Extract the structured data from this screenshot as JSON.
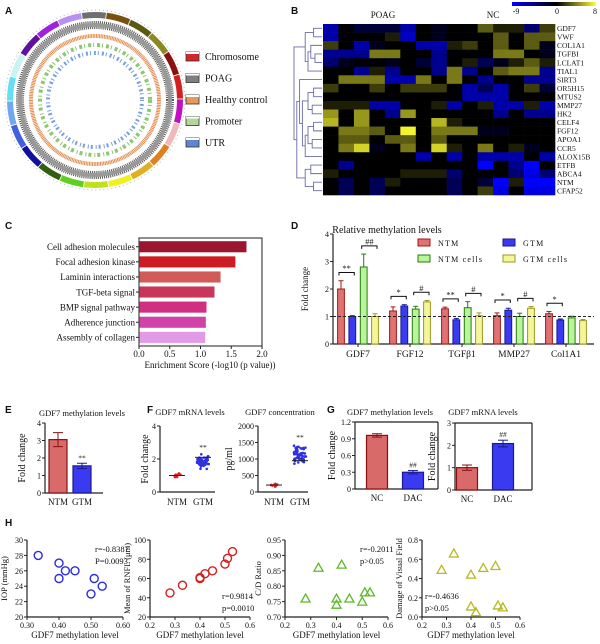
{
  "panels": {
    "A": "A",
    "B": "B",
    "C": "C",
    "D": "D",
    "E": "E",
    "F": "F",
    "G": "G",
    "H": "H"
  },
  "chart_data": [
    {
      "type": "circos",
      "legend": [
        {
          "label": "Chromosome",
          "color": "#d3262b"
        },
        {
          "label": "POAG",
          "color": "#7f7f7f"
        },
        {
          "label": "Healthy control",
          "color": "#e59a5c"
        },
        {
          "label": "Promoter",
          "color": "#b5d59a"
        },
        {
          "label": "UTR",
          "color": "#5f86cf"
        }
      ],
      "chromosome_colors": [
        "#6f6f6f",
        "#7a5010",
        "#5a5a10",
        "#8a8a20",
        "#8b1010",
        "#d02020",
        "#c010c0",
        "#f0b8b8",
        "#e08020",
        "#e0b020",
        "#f0f020",
        "#c0e020",
        "#60d020",
        "#306010",
        "#1010a0",
        "#4060e0",
        "#70a8f0",
        "#60e0f0",
        "#c8f4f4",
        "#6010a0",
        "#a020e0",
        "#b890f0"
      ]
    },
    {
      "type": "heatmap",
      "column_groups": [
        "POAG",
        "NC"
      ],
      "colorbar": {
        "min": -9,
        "max": 8,
        "ticks": [
          "-9",
          "0",
          "8"
        ],
        "low_color": "#0000ff",
        "mid_color": "#000000",
        "high_color": "#ffff30"
      },
      "highlight_color": "#e0201b",
      "rows": [
        "GDF7",
        "VWF",
        "COL1A1",
        "TGFBI",
        "LCLAT1",
        "TIAL1",
        "SIRT3",
        "OR5H15",
        "MTUS2",
        "MMP27",
        "HK2",
        "CELF4",
        "FGF12",
        "APOA1",
        "CCR5",
        "ALOX15B",
        "ETFB",
        "ABCA4",
        "NTM",
        "CFAP52"
      ],
      "values": [
        [
          -6,
          0,
          -2,
          -2,
          -2,
          -6,
          0,
          -1,
          0,
          0,
          3,
          1,
          1,
          -4,
          2
        ],
        [
          -6,
          0,
          0,
          0,
          1,
          -7,
          0,
          -1,
          0,
          0,
          0,
          3,
          0,
          3,
          3
        ],
        [
          2,
          0,
          -6,
          -1,
          0,
          0,
          -6,
          -6,
          1,
          2,
          0,
          3,
          0,
          3,
          -1
        ],
        [
          -5,
          -5,
          -5,
          4,
          4,
          0,
          0,
          -5,
          0,
          0,
          0,
          4,
          4,
          0,
          -1
        ],
        [
          -4,
          -1,
          0,
          0,
          -1,
          0,
          -2,
          -5,
          0,
          1,
          -3,
          -1,
          1,
          3,
          1
        ],
        [
          0,
          0,
          -5,
          1,
          -5,
          0,
          0,
          -5,
          4,
          -5,
          0,
          3,
          4,
          4,
          -5
        ],
        [
          0,
          4,
          4,
          4,
          -6,
          -6,
          4,
          0,
          4,
          0,
          -5,
          0,
          0,
          -5,
          -5
        ],
        [
          2,
          0,
          0,
          2,
          0,
          2,
          2,
          2,
          0,
          -6,
          -3,
          -6,
          0,
          2,
          -2
        ],
        [
          0,
          0,
          0,
          0,
          0,
          0,
          0,
          0,
          0,
          -6,
          -6,
          -6,
          0,
          0,
          0
        ],
        [
          1,
          1,
          1,
          -6,
          -6,
          0,
          0,
          1,
          -6,
          0,
          1,
          -6,
          -6,
          1,
          -6
        ],
        [
          5,
          0,
          5,
          0,
          -5,
          5,
          0,
          0,
          0,
          0,
          0,
          -5,
          0,
          -5,
          -5
        ],
        [
          6,
          0,
          5,
          0,
          0,
          0,
          0,
          6,
          1,
          0,
          0,
          0,
          0,
          0,
          0
        ],
        [
          0,
          4,
          4,
          3,
          0,
          8,
          0,
          4,
          4,
          4,
          -1,
          -1,
          0,
          0,
          0
        ],
        [
          0,
          3,
          3,
          0,
          3,
          3,
          0,
          3,
          0,
          0,
          0,
          0,
          0,
          0,
          0
        ],
        [
          0,
          4,
          7,
          -1,
          0,
          4,
          0,
          7,
          1,
          0,
          4,
          0,
          1,
          -1,
          0
        ],
        [
          0,
          0,
          0,
          0,
          0,
          0,
          -6,
          0,
          -6,
          0,
          -6,
          -6,
          -6,
          0,
          -6
        ],
        [
          0,
          -5,
          0,
          0,
          0,
          0,
          0,
          0,
          0,
          0,
          -9,
          0,
          -5,
          -9,
          0
        ],
        [
          1,
          0,
          0,
          0,
          0,
          1,
          1,
          1,
          -4,
          0,
          0,
          0,
          -4,
          -8,
          -4
        ],
        [
          0,
          -3,
          0,
          -3,
          1,
          0,
          0,
          0,
          -3,
          0,
          -2,
          -9,
          1,
          -9,
          -9
        ],
        [
          0,
          -3,
          0,
          -3,
          0,
          0,
          0,
          0,
          -3,
          0,
          2,
          -8,
          0,
          -8,
          -8
        ]
      ]
    },
    {
      "type": "bar",
      "orientation": "horizontal",
      "categories": [
        "Cell adhesion molecules",
        "Focal adhesion kinase",
        "Laminin interactions",
        "TGF-beta signal",
        "BMP signal pathway",
        "Adherence junction",
        "Assembly of collagen"
      ],
      "values": [
        1.75,
        1.57,
        1.33,
        1.23,
        1.1,
        1.09,
        1.08
      ],
      "colors": [
        "#9b1530",
        "#cc1b22",
        "#d25a58",
        "#c8365a",
        "#d0307f",
        "#d042a8",
        "#e39ae6"
      ],
      "xlabel": "Enrichment Score (-log10 (p value))",
      "xlim": [
        0,
        2
      ],
      "xticks": [
        "0.0",
        "0.5",
        "1.0",
        "1.5",
        "2.0"
      ]
    },
    {
      "type": "bar",
      "title": "Relative methylation levels",
      "ylabel": "Fold change",
      "ylim": [
        0,
        4
      ],
      "yticks": [
        "0",
        "1",
        "2",
        "3",
        "4"
      ],
      "reference_line": 1,
      "categories": [
        "GDF7",
        "FGF12",
        "TGFβ1",
        "MMP27",
        "Col1A1"
      ],
      "series": [
        {
          "name": "NTM",
          "fill": "#e07272",
          "stroke": "#a01818",
          "values": [
            2.0,
            1.2,
            1.28,
            1.03,
            1.1
          ],
          "errors": [
            0.3,
            0.15,
            0.06,
            0.1,
            0.08
          ]
        },
        {
          "name": "GTM",
          "fill": "#3a3af0",
          "stroke": "#1a1a90",
          "values": [
            1.0,
            1.38,
            0.88,
            1.23,
            0.87
          ],
          "errors": [
            0.03,
            0.05,
            0.05,
            0.07,
            0.04
          ]
        },
        {
          "name": "NTM cells",
          "fill": "#b8f59a",
          "stroke": "#2a7a10",
          "values": [
            2.8,
            1.27,
            1.32,
            1.0,
            0.95
          ],
          "errors": [
            0.47,
            0.1,
            0.22,
            0.12,
            0.06
          ]
        },
        {
          "name": "GTM cells",
          "fill": "#f5f59a",
          "stroke": "#9a9a20",
          "values": [
            1.0,
            1.53,
            1.03,
            1.3,
            0.85
          ],
          "errors": [
            0.1,
            0.05,
            0.1,
            0.06,
            0.04
          ]
        }
      ],
      "significance": [
        {
          "category": 0,
          "pair": [
            0,
            1
          ],
          "label": "**"
        },
        {
          "category": 0,
          "pair": [
            2,
            3
          ],
          "label": "##"
        },
        {
          "category": 1,
          "pair": [
            0,
            1
          ],
          "label": "*"
        },
        {
          "category": 1,
          "pair": [
            2,
            3
          ],
          "label": "#"
        },
        {
          "category": 2,
          "pair": [
            0,
            1
          ],
          "label": "**"
        },
        {
          "category": 2,
          "pair": [
            2,
            3
          ],
          "label": "#"
        },
        {
          "category": 3,
          "pair": [
            0,
            1
          ],
          "label": "*"
        },
        {
          "category": 3,
          "pair": [
            2,
            3
          ],
          "label": "#"
        },
        {
          "category": 4,
          "pair": [
            0,
            1
          ],
          "label": "*"
        }
      ]
    },
    {
      "type": "bar",
      "title": "GDF7 methylation levels",
      "ylabel": "Fold change",
      "ylim": [
        0,
        4
      ],
      "yticks": [
        "0",
        "1",
        "2",
        "3",
        "4"
      ],
      "categories": [
        "NTM",
        "GTM"
      ],
      "values": [
        3.05,
        1.55
      ],
      "errors": [
        0.4,
        0.15
      ],
      "colors": [
        "#d86a6a",
        "#3a3af0"
      ],
      "strokes": [
        "#8a1010",
        "#1a1a90"
      ],
      "annotations": [
        "",
        "**"
      ]
    },
    {
      "type": "scatter",
      "title": "GDF7 mRNA levels",
      "ylabel": "Fold change",
      "ylim": [
        0,
        4
      ],
      "yticks": [
        "0",
        "2",
        "4"
      ],
      "categories": [
        "NTM",
        "GTM"
      ],
      "means": [
        1.0,
        2.1
      ],
      "ranges": [
        [
          0.9,
          1.15
        ],
        [
          1.2,
          2.5
        ]
      ],
      "colors": [
        "#e02020",
        "#3030e0"
      ],
      "annotations": [
        "",
        "**"
      ]
    },
    {
      "type": "scatter",
      "title": "GDF7 concentration",
      "ylabel": "pg/ml",
      "ylim": [
        0,
        2000
      ],
      "yticks": [
        "0",
        "500",
        "1000",
        "1500",
        "2000"
      ],
      "categories": [
        "NTM",
        "GTM"
      ],
      "means": [
        210,
        950
      ],
      "ranges": [
        [
          130,
          290
        ],
        [
          680,
          1550
        ]
      ],
      "colors": [
        "#e02020",
        "#3030e0"
      ],
      "annotations": [
        "",
        "**"
      ]
    },
    {
      "type": "bar",
      "title": "GDF7 methylation levels",
      "ylabel": "Fold change",
      "ylim": [
        0,
        1.2
      ],
      "yticks": [
        "0",
        "0.3",
        "0.6",
        "0.9",
        "1.2"
      ],
      "categories": [
        "NC",
        "DAC"
      ],
      "values": [
        0.96,
        0.3
      ],
      "errors": [
        0.03,
        0.03
      ],
      "colors": [
        "#d86a6a",
        "#3a3af0"
      ],
      "strokes": [
        "#8a1010",
        "#1a1a90"
      ],
      "annotations": [
        "",
        "##"
      ]
    },
    {
      "type": "bar",
      "title": "GDF7 mRNA levels",
      "ylabel": "Fold change",
      "ylim": [
        0,
        3
      ],
      "yticks": [
        "0",
        "1",
        "2",
        "3"
      ],
      "categories": [
        "NC",
        "DAC"
      ],
      "values": [
        1.0,
        2.08
      ],
      "errors": [
        0.12,
        0.15
      ],
      "colors": [
        "#d86a6a",
        "#3a3af0"
      ],
      "strokes": [
        "#8a1010",
        "#1a1a90"
      ],
      "annotations": [
        "",
        "##"
      ]
    },
    {
      "type": "scatter",
      "marker": "circle",
      "color": "#2a2ae6",
      "xlabel": "GDF7 methylation level",
      "ylabel": "IOP (mmHg)",
      "xlim": [
        0.3,
        0.6
      ],
      "xticks": [
        "0.30",
        "0.40",
        "0.50",
        "0.60"
      ],
      "ylim": [
        20,
        30
      ],
      "yticks": [
        "20",
        "22",
        "24",
        "26",
        "28",
        "30"
      ],
      "x": [
        0.335,
        0.4,
        0.4,
        0.42,
        0.45,
        0.5,
        0.51,
        0.535
      ],
      "y": [
        28,
        27,
        25,
        26,
        26,
        23,
        25,
        24
      ],
      "stats": [
        "r=-0.8387",
        "P=0.0093"
      ],
      "stats_position": "top-right"
    },
    {
      "type": "scatter",
      "marker": "circle",
      "color": "#d42020",
      "xlabel": "GDF7 methylation level",
      "ylabel": "Mean of RNFL (μm)",
      "xlim": [
        0.2,
        0.6
      ],
      "xticks": [
        "0.2",
        "0.3",
        "0.4",
        "0.5",
        "0.6"
      ],
      "ylim": [
        20,
        100
      ],
      "yticks": [
        "20",
        "40",
        "60",
        "80",
        "100"
      ],
      "x": [
        0.28,
        0.33,
        0.4,
        0.4,
        0.42,
        0.45,
        0.5,
        0.51,
        0.53
      ],
      "y": [
        45,
        53,
        60,
        61,
        65,
        68,
        75,
        81,
        88
      ],
      "stats": [
        "r=0.9814",
        "p=0.0010"
      ],
      "stats_position": "bottom-right"
    },
    {
      "type": "scatter",
      "marker": "triangle",
      "color": "#5cb82a",
      "xlabel": "GDF7 methylation level",
      "ylabel": "C/D Ratio",
      "xlim": [
        0.2,
        0.6
      ],
      "xticks": [
        "0.2",
        "0.3",
        "0.4",
        "0.5",
        "0.6"
      ],
      "ylim": [
        0.7,
        0.95
      ],
      "yticks": [
        "0.70",
        "0.75",
        "0.80",
        "0.85",
        "0.90",
        "0.95"
      ],
      "x": [
        0.28,
        0.33,
        0.4,
        0.4,
        0.42,
        0.45,
        0.5,
        0.51,
        0.53
      ],
      "y": [
        0.76,
        0.86,
        0.76,
        0.74,
        0.87,
        0.76,
        0.75,
        0.78,
        0.78
      ],
      "stats": [
        "r=-0.2011",
        "p>0.05"
      ],
      "stats_position": "top-right"
    },
    {
      "type": "scatter",
      "marker": "triangle",
      "color": "#b8b820",
      "xlabel": "GDF7 methylation level",
      "ylabel": "Damage of Visual Field",
      "xlim": [
        0.2,
        0.6
      ],
      "xticks": [
        "0.2",
        "0.3",
        "0.4",
        "0.5",
        "0.6"
      ],
      "ylim": [
        0,
        0.8
      ],
      "yticks": [
        "0.0",
        "0.2",
        "0.4",
        "0.6",
        "0.8"
      ],
      "x": [
        0.28,
        0.33,
        0.4,
        0.4,
        0.42,
        0.45,
        0.5,
        0.51,
        0.53
      ],
      "y": [
        0.49,
        0.66,
        0.44,
        0.11,
        0.05,
        0.51,
        0.53,
        0.12,
        0.1
      ],
      "stats": [
        "r=-0.4636",
        "p>0.05"
      ],
      "stats_position": "bottom-left"
    }
  ]
}
